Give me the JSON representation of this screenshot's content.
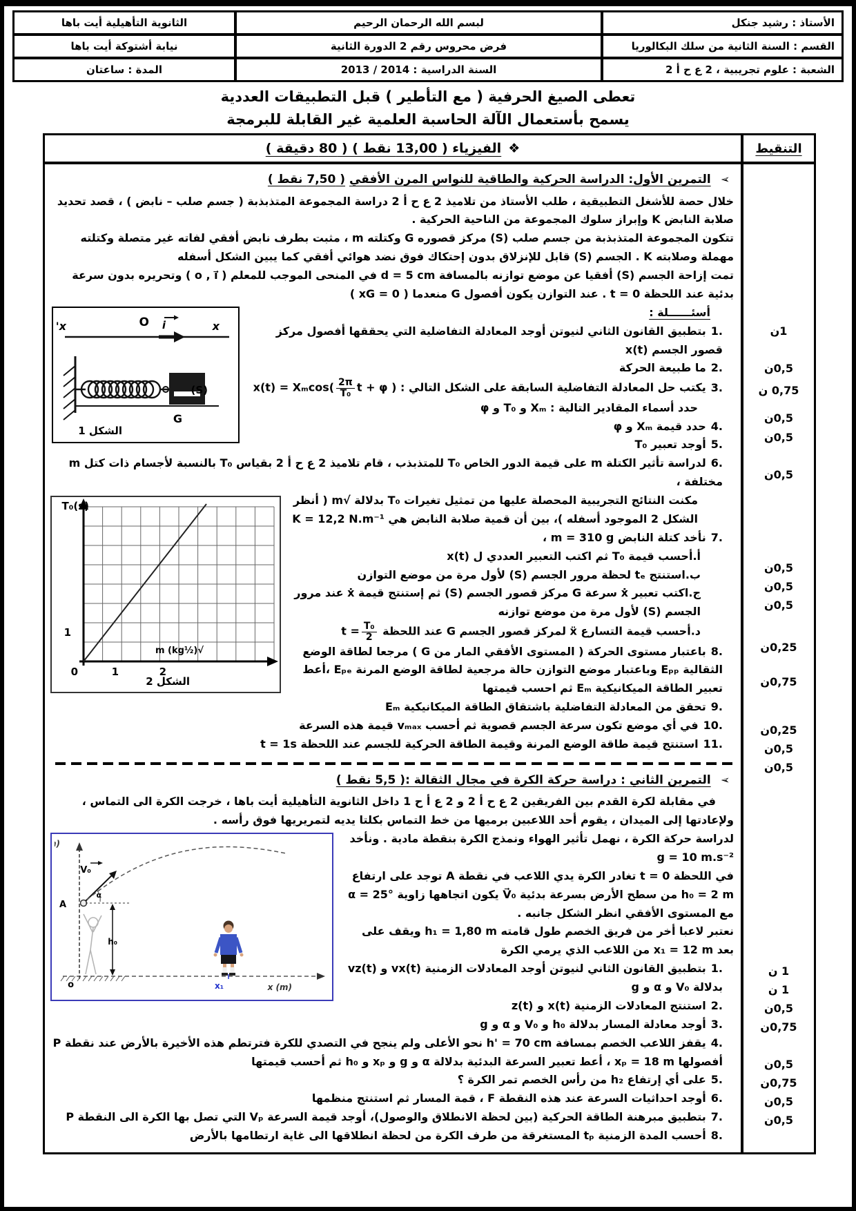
{
  "info_table": {
    "rows": [
      [
        "الأستاذ : رشيد جنكل",
        "لبسم الله الرحمان الرحيم",
        "الثانوية التأهيلية أيت باها"
      ],
      [
        "القسم : السنة الثانية من سلك البكالوريا",
        "فرض محروس رقم 2 الدورة الثانية",
        "نيابة أشتوكة أيت باها"
      ],
      [
        "الشعبة : علوم تجريبية ، 2 ع ح أ 2",
        "السنة الدراسية : 2014 / 2013",
        "المدة : ساعتان"
      ]
    ]
  },
  "notices": [
    "تعطى الصيغ الحرفية ( مع التأطير ) قبل التطبيقات العددية",
    "يسمح بأستعمال الآلة الحاسبة العلمية غير القابلة للبرمجة"
  ],
  "subject_line": {
    "icon": "❖",
    "text": "الفيزياء ( 13,00 نقط )   ( 80 دقيقة )"
  },
  "grading": {
    "header": "التنقيط",
    "marks": [
      "1ن",
      "0,5ن",
      "0,75 ن",
      "0,5ن",
      "0,5ن",
      "0,5ن",
      "0,5ن",
      "0,5ن",
      "0,5ن",
      "0,25ن",
      "0,75ن",
      "0,25ن",
      "0,5ن",
      "0,5ن",
      "1 ن",
      "1 ن",
      "0,5ن",
      "0,75ن",
      "0,5ن",
      "0,75ن",
      "0,5ن",
      "0,5ن"
    ]
  },
  "ex1": {
    "arrow": "➢",
    "title": "التمرين الأول: الدراسة الحركية والطاقية للنواس المرن الأفقي",
    "points": "( 7,50 نقط )",
    "intro": [
      "خلال حصة للأشغل التطبيقية ، طلب الأستاذ من تلاميذ 2 ع ح أ 2 دراسة المجموعة المتذبذبة ( جسم صلب – نابض ) ، قصد تحديد صلابة النابض K وإبراز سلوك المجموعة من الناحية الحركية .",
      "تتكون المجموعة المتذبذبة من جسم صلب (S) مركز قصوره G وكتلته m ، مثبت بطرف نابض أفقي لفاته غير متصلة وكتلته مهملة وصلابته K . الجسم (S) قابل للإنزلاق بدون إحتكاك فوق نضد هوائي أفقي كما يبين الشكل أسفله",
      "تمت إزاحة الجسم (S) أفقيا عن موضع توازنه بالمسافة d = 5 cm في المنحى الموجب للمعلم ( o , i⃗ ) وتحريره بدون سرعة بدئية عند اللحظة t = 0 . عند التوازن يكون أفصول G منعدما ( xG = 0 )"
    ],
    "questions_label": "أسئــــــلة :",
    "q1": {
      "n": "1.",
      "t": "بتطبيق القانون الثاني لنيوتن أوجد المعادلة التفاضلية التي يحققها أفصول مركز قصور الجسم x(t)"
    },
    "q2": {
      "n": "2.",
      "t": "ما طبيعة الحركة"
    },
    "q3": {
      "n": "3.",
      "t": "يكتب حل المعادلة التفاضلية السابقة على الشكل التالي :",
      "f_lhs": "x(t) = Xₘcos(",
      "f_num": "2π",
      "f_den": "T₀",
      "f_rhs": "t + φ )"
    },
    "q3b": "حدد أسماء المقادير التالية : Xₘ و T₀ و φ",
    "q4": {
      "n": "4.",
      "t": "حدد قيمة Xₘ و φ"
    },
    "q5": {
      "n": "5.",
      "t": "أوجد تعبير T₀"
    },
    "q6": {
      "n": "6.",
      "t1": "لدراسة تأثير الكتلة m على قيمة الدور الخاص T₀ للمتذبذب ، قام تلاميذ 2 ع ح أ 2 بقياس T₀ بالنسبة لأجسام ذات كتل m مختلفة ،",
      "t2": "مكنت النتائج التجريبية المحصلة عليها من تمثيل تغيرات T₀ بدلالة √m ( أنظر الشكل 2 الموجود أسفله )، بين أن قمية صلابة النابض هي K = 12,2 N.m⁻¹"
    },
    "q7": {
      "n": "7.",
      "t": "نأخد كتلة النابض m = 310 g ،",
      "a": {
        "n": "أ.",
        "t": "أحسب قيمة T₀ ثم اكتب التعبير العددي ل x(t)"
      },
      "b": {
        "n": "ب.",
        "t": "استنتج tₑ لحظة مرور الجسم (S) لأول مرة من موضع التوازن"
      },
      "c": {
        "n": "ج.",
        "t": "اكتب تعبير ẋ سرعة G مركز قصور الجسم (S) ثم إستنتج قيمة ẋ عند مرور الجسم (S) لأول مرة من موضع توازنه"
      },
      "d": {
        "n": "د.",
        "t": "أحسب قيمة التسارع ẍ لمركز قصور الجسم G عند اللحظة",
        "f_pre": "t =",
        "f_num": "T₀",
        "f_den": "2"
      }
    },
    "q8": {
      "n": "8.",
      "t": "باعتبار مستوى الحركة ( المستوى الأفقي المار من G ) مرجعا لطاقة الوضع الثقالية Eₚₚ وباعتبار موضع التوازن حالة مرجعية لطاقة الوضع المرنة Eₚₑ ،أعط تعبير الطاقة الميكانيكية Eₘ ثم احسب قيمتها"
    },
    "q9": {
      "n": "9.",
      "t": "تحقق من المعادلة التفاضلية باشتقاق الطاقة الميكانيكية Eₘ"
    },
    "q10": {
      "n": "10.",
      "t": "في أي موضع تكون سرعة الجسم قصوية ثم أحسب vₘₐₓ قيمة هذه السرعة"
    },
    "q11": {
      "n": "11.",
      "t": "استنتج قيمة طاقة الوضع المرنة وقيمة الطاقة الحركية للجسم عند اللحظة t = 1s"
    }
  },
  "fig1": {
    "caption": "الشكل 1",
    "xprime": "x'",
    "o_label": "O",
    "i_label": "i",
    "x_label": "x",
    "s_label": "(S)",
    "g_label": "G"
  },
  "fig2": {
    "caption": "الشكل 2",
    "ylabel": "T₀(s)",
    "xlabel": "√m (kg½)",
    "ytick1": "1",
    "xtick0": "0",
    "xtick1": "1",
    "xtick2": "2"
  },
  "ex2": {
    "arrow": "➢",
    "title": "التمرين الثاني : دراسة حركة الكرة في مجال الثقالة :( 5,5 نقط )",
    "intro": [
      "في مقابلة لكرة القدم بين الفريقين 2 ع ح أ 2 و 2 ع أ ح 1 داخل الثانوية التأهيلية أيت باها ، خرجت الكرة الى التماس ، ولإعادتها إلى الميدان ، يقوم أحد اللاعبين برميها من خط التماس بكلتا يديه لتمريريها فوق رأسه .",
      "لدراسة حركة الكرة ، نهمل تأثير الهواء ونمذج الكرة بنقطة مادية . ونأخد g = 10 m.s⁻²",
      "في اللحظة t = 0 تغادر الكرة يدي اللاعب في نقطة A توجد على ارتفاع h₀ = 2 m من سطح الأرض بسرعة بدئية V⃗₀ يكون اتجاهها زاوية α = 25° مع المستوى الأفقي انظر الشكل جانبه .",
      "نعتبر لاعبا أخر من فريق الخصم طول قامته h₁ = 1,80 m ويقف على بعد x₁ = 12 m من اللاعب الذي يرمي الكرة"
    ],
    "q1": {
      "n": "1.",
      "t": "بتطبيق القانون الثاني لنيوتن أوجد المعادلات الزمنية vx(t) و vz(t) بدلالة V₀ و α و g"
    },
    "q2": {
      "n": "2.",
      "t": "استنتج المعادلات الزمنية x(t) و z(t)"
    },
    "q3": {
      "n": "3.",
      "t": "أوجد معادلة المسار بدلالة h₀ و V₀ و α و g"
    },
    "q4": {
      "n": "4.",
      "t": "يقفز اللاعب الخصم بمسافة h' = 70 cm نحو الأعلى ولم ينجح في التصدي للكرة فترتطم هذه الأخيرة بالأرض عند نقطة P أفصولها xₚ = 18 m ، أعط تعبير السرعة البدئية بدلالة α و g و xₚ و h₀ ثم أحسب قيمتها"
    },
    "q5": {
      "n": "5.",
      "t": "على أي إرتفاع h₂ من رأس الخصم تمر الكرة ؟"
    },
    "q6": {
      "n": "6.",
      "t": "أوجد احداثيات السرعة عند هذه النقطة F ، قمة المسار ثم استنتج منظمها"
    },
    "q7": {
      "n": "7.",
      "t": "بتطبيق مبرهنة الطاقة الحركية (بين لحظة الانطلاق والوصول)، أوجد قيمة السرعة Vₚ التي تصل بها الكرة الى النقطة P"
    },
    "q8": {
      "n": "8.",
      "t": "أحسب المدة الزمنية tₚ المستغرقة من طرف الكرة من لحظة انطلاقها الى غاية ارتطامها بالأرض"
    }
  },
  "fig3": {
    "zlabel": "z (m)",
    "xlabel": "x (m)",
    "a_label": "A",
    "v0_label": "V₀",
    "alpha_label": "α",
    "h0_label": "h₀",
    "o_label": "o",
    "x1_label": "x₁"
  }
}
